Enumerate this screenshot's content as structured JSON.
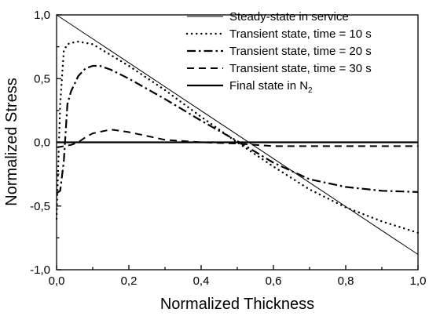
{
  "chart_data": {
    "type": "line",
    "title": "",
    "xlabel": "Normalized Thickness",
    "ylabel": "Normalized Stress",
    "xlim": [
      0.0,
      1.0
    ],
    "ylim": [
      -1.0,
      1.0
    ],
    "xticks": [
      "0,0",
      "0,2",
      "0,4",
      "0,6",
      "0,8",
      "1,0"
    ],
    "xtick_values": [
      0.0,
      0.2,
      0.4,
      0.6,
      0.8,
      1.0
    ],
    "yticks": [
      "1,0",
      "0,5",
      "0,0",
      "-0,5",
      "-1,0"
    ],
    "ytick_values": [
      1.0,
      0.5,
      0.0,
      -0.5,
      -1.0
    ],
    "grid": false,
    "legend_position": "top-right",
    "series": [
      {
        "name": "Steady-state in service",
        "style": "thin-solid",
        "x": [
          0.0,
          1.0
        ],
        "y": [
          1.0,
          -0.88
        ]
      },
      {
        "name": "Transient state, time = 10 s",
        "style": "dotted",
        "x": [
          0.0,
          0.01,
          0.02,
          0.03,
          0.04,
          0.06,
          0.1,
          0.2,
          0.3,
          0.4,
          0.5,
          0.6,
          0.7,
          0.8,
          0.9,
          1.0
        ],
        "y": [
          -0.6,
          0.3,
          0.72,
          0.77,
          0.78,
          0.79,
          0.77,
          0.6,
          0.41,
          0.2,
          0.0,
          -0.19,
          -0.37,
          -0.51,
          -0.62,
          -0.71
        ]
      },
      {
        "name": "Transient state, time = 20 s",
        "style": "dash-dot",
        "x": [
          0.0,
          0.01,
          0.02,
          0.03,
          0.04,
          0.06,
          0.08,
          0.1,
          0.12,
          0.15,
          0.2,
          0.3,
          0.4,
          0.5,
          0.6,
          0.7,
          0.8,
          0.9,
          1.0
        ],
        "y": [
          -0.4,
          -0.38,
          -0.15,
          0.3,
          0.4,
          0.52,
          0.58,
          0.6,
          0.6,
          0.57,
          0.5,
          0.34,
          0.17,
          0.01,
          -0.16,
          -0.29,
          -0.35,
          -0.38,
          -0.39
        ]
      },
      {
        "name": "Transient state, time = 30 s",
        "style": "dashed",
        "x": [
          0.0,
          0.02,
          0.04,
          0.06,
          0.08,
          0.1,
          0.15,
          0.2,
          0.25,
          0.3,
          0.35,
          0.4,
          0.5,
          0.55,
          0.6,
          0.8,
          1.0
        ],
        "y": [
          -0.04,
          -0.03,
          -0.02,
          0.0,
          0.04,
          0.07,
          0.1,
          0.08,
          0.05,
          0.02,
          0.01,
          0.0,
          -0.01,
          -0.02,
          -0.03,
          -0.03,
          -0.03
        ]
      },
      {
        "name": "Final state in N",
        "name_subscript": "2",
        "style": "thick-solid",
        "x": [
          0.0,
          1.0
        ],
        "y": [
          0.0,
          0.0
        ]
      }
    ]
  }
}
